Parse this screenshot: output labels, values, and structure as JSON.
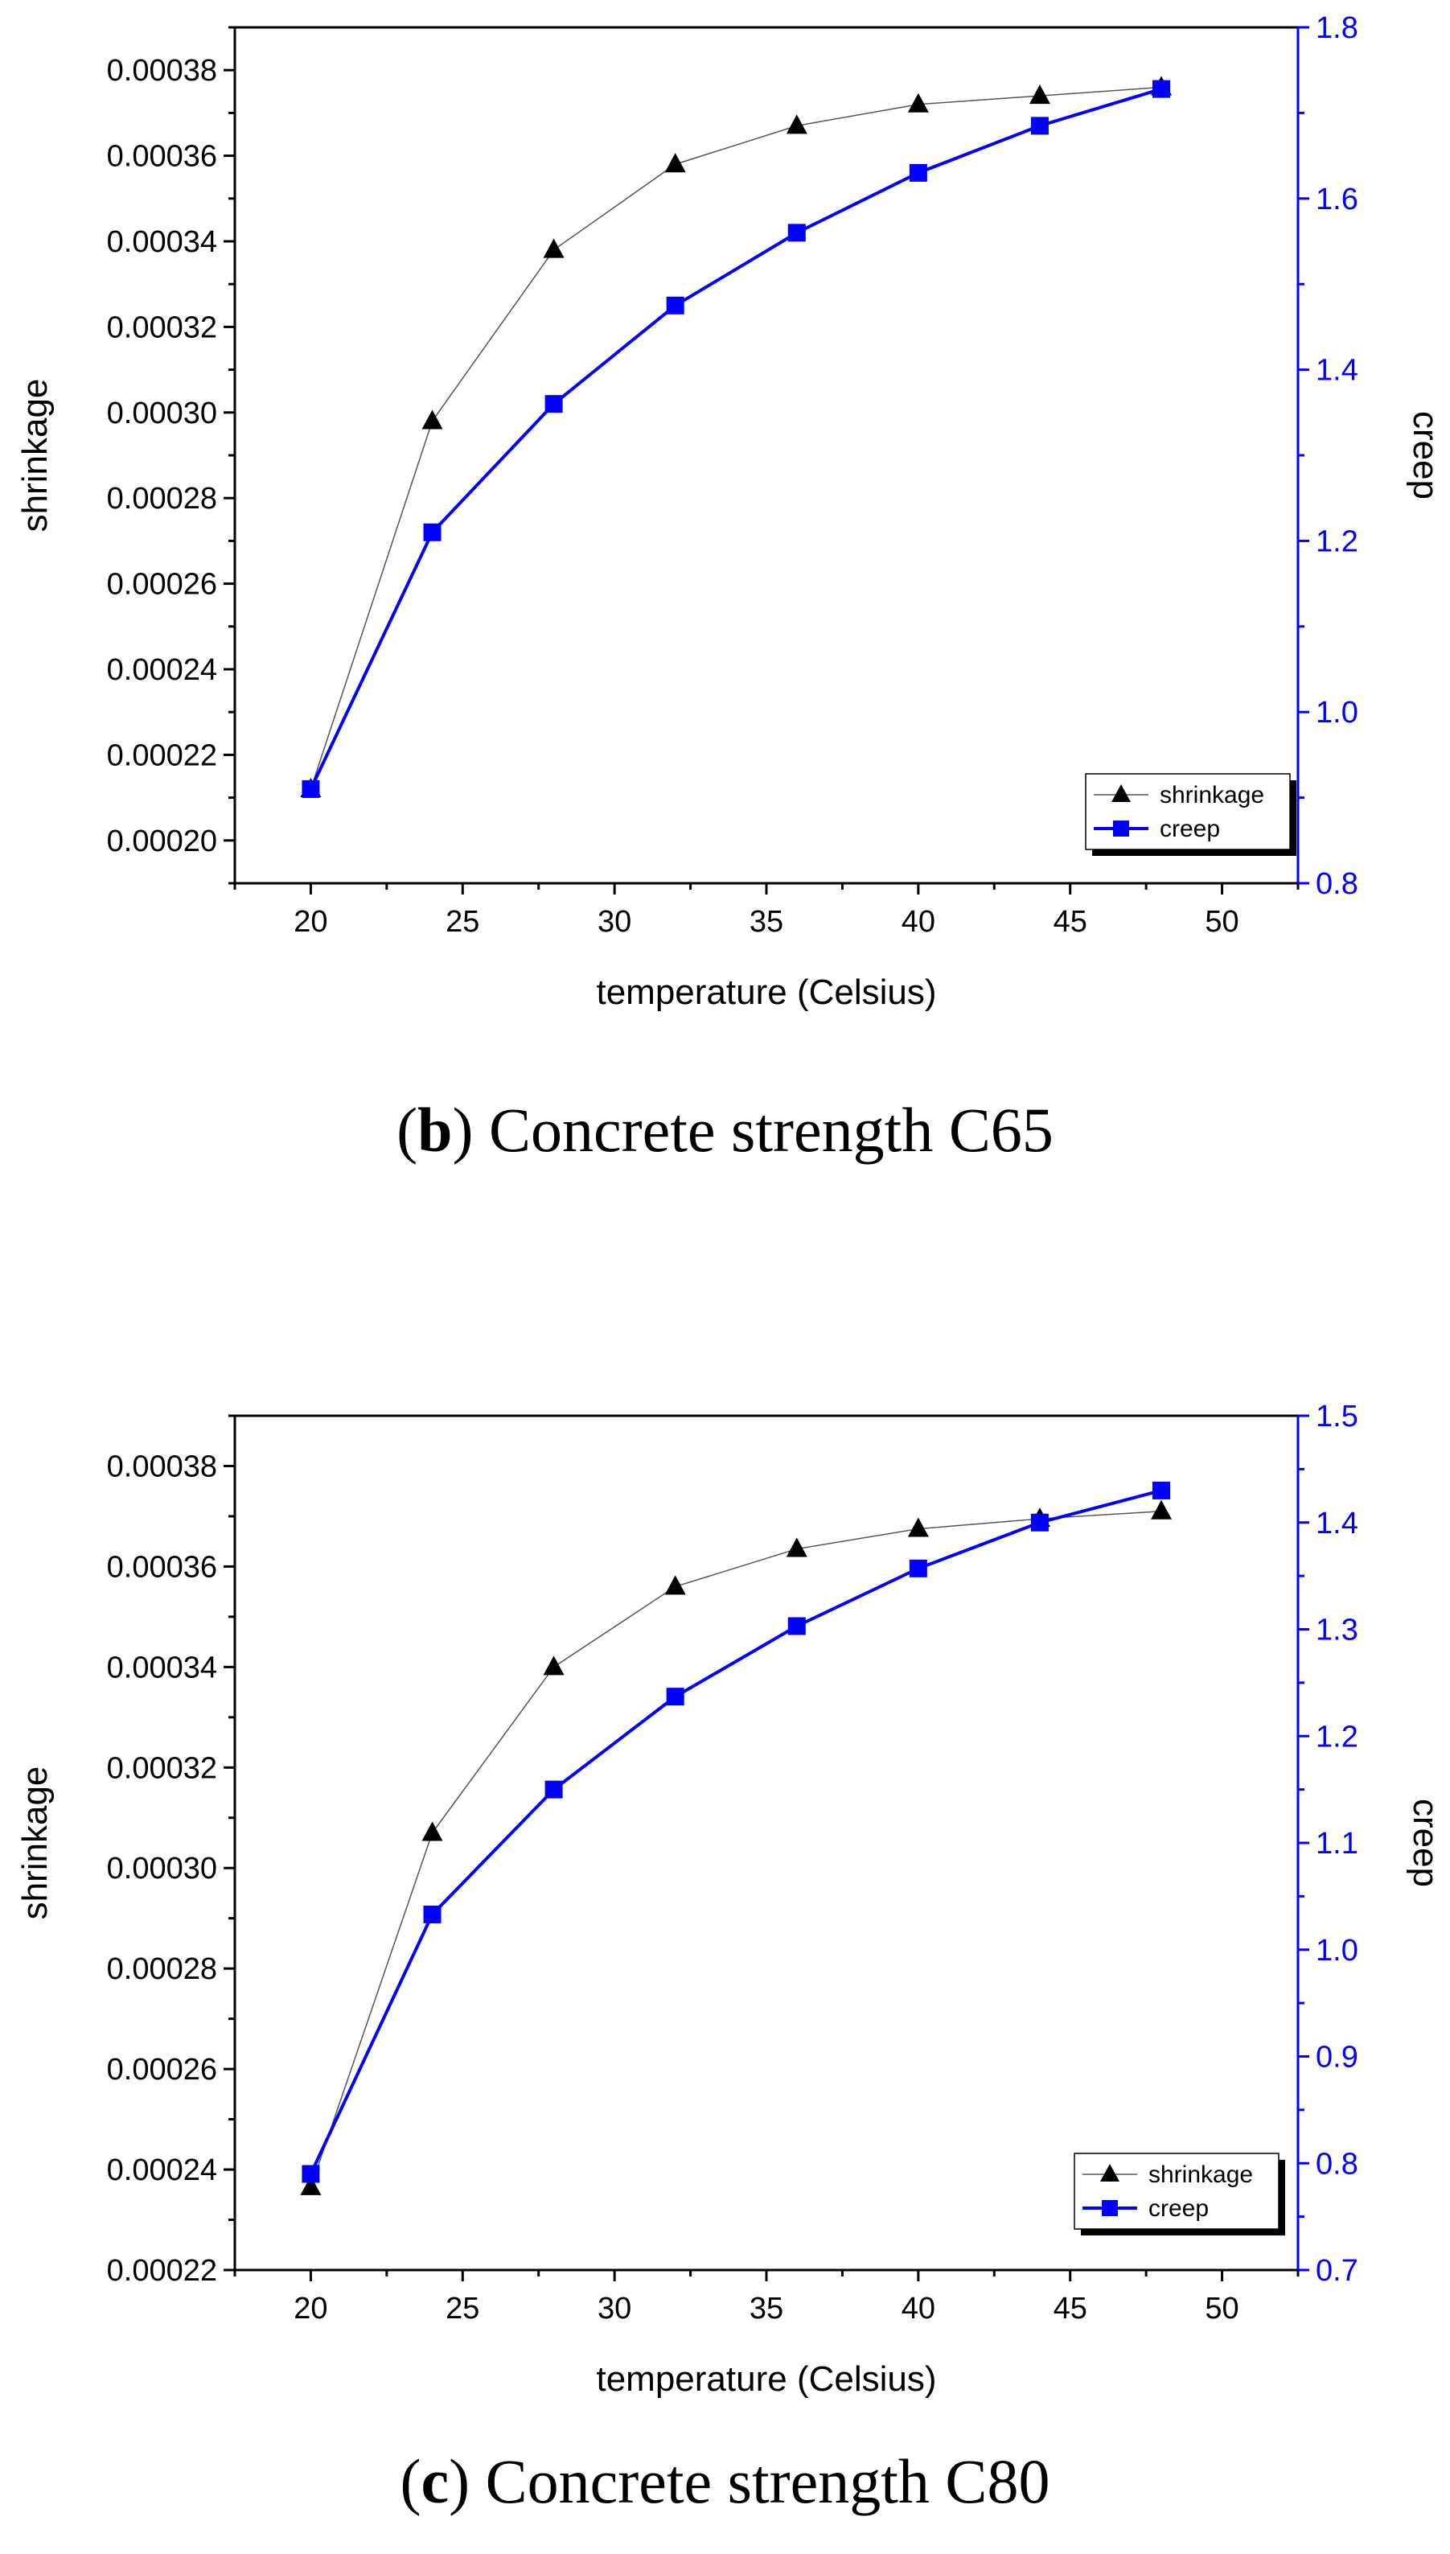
{
  "colors": {
    "shrinkage": "#000000",
    "creep": "#0000ff"
  },
  "chart_data": [
    {
      "type": "line",
      "caption_letter": "b",
      "caption_text": "Concrete strength C65",
      "xlabel": "temperature (Celsius)",
      "ylabel": "shrinkage",
      "y2label": "creep",
      "xlim": [
        17.5,
        52.5
      ],
      "ylim": [
        0.00019,
        0.00039
      ],
      "y2lim": [
        0.8,
        1.8
      ],
      "xticks": [
        20,
        25,
        30,
        35,
        40,
        45,
        50
      ],
      "yticks": [
        0.0002,
        0.00022,
        0.00024,
        0.00026,
        0.00028,
        0.0003,
        0.00032,
        0.00034,
        0.00036,
        0.00038
      ],
      "ytick_labels": [
        "0.00020",
        "0.00022",
        "0.00024",
        "0.00026",
        "0.00028",
        "0.00030",
        "0.00032",
        "0.00034",
        "0.00036",
        "0.00038"
      ],
      "y2ticks": [
        0.8,
        1.0,
        1.2,
        1.4,
        1.6,
        1.8
      ],
      "y2tick_labels": [
        "0.8",
        "1.0",
        "1.2",
        "1.4",
        "1.6",
        "1.8"
      ],
      "x": [
        20,
        24,
        28,
        32,
        36,
        40,
        44,
        48
      ],
      "series": [
        {
          "name": "shrinkage",
          "axis": "left",
          "marker": "triangle",
          "values": [
            0.000212,
            0.000298,
            0.000338,
            0.000358,
            0.000367,
            0.000372,
            0.000374,
            0.000376
          ]
        },
        {
          "name": "creep",
          "axis": "right",
          "marker": "square",
          "values": [
            0.91,
            1.21,
            1.36,
            1.475,
            1.56,
            1.63,
            1.685,
            1.728
          ]
        }
      ],
      "legend": [
        "shrinkage",
        "creep"
      ],
      "legend_position": "bottom-right"
    },
    {
      "type": "line",
      "caption_letter": "c",
      "caption_text": "Concrete strength C80",
      "xlabel": "temperature (Celsius)",
      "ylabel": "shrinkage",
      "y2label": "creep",
      "xlim": [
        17.5,
        52.5
      ],
      "ylim": [
        0.00022,
        0.00039
      ],
      "y2lim": [
        0.7,
        1.5
      ],
      "xticks": [
        20,
        25,
        30,
        35,
        40,
        45,
        50
      ],
      "yticks": [
        0.00022,
        0.00024,
        0.00026,
        0.00028,
        0.0003,
        0.00032,
        0.00034,
        0.00036,
        0.00038
      ],
      "ytick_labels": [
        "0.00022",
        "0.00024",
        "0.00026",
        "0.00028",
        "0.00030",
        "0.00032",
        "0.00034",
        "0.00036",
        "0.00038"
      ],
      "y2ticks": [
        0.7,
        0.8,
        0.9,
        1.0,
        1.1,
        1.2,
        1.3,
        1.4,
        1.5
      ],
      "y2tick_labels": [
        "0.7",
        "0.8",
        "0.9",
        "1.0",
        "1.1",
        "1.2",
        "1.3",
        "1.4",
        "1.5"
      ],
      "x": [
        20,
        24,
        28,
        32,
        36,
        40,
        44,
        48
      ],
      "series": [
        {
          "name": "shrinkage",
          "axis": "left",
          "marker": "triangle",
          "values": [
            0.0002365,
            0.000307,
            0.00034,
            0.000356,
            0.0003635,
            0.0003675,
            0.0003695,
            0.000371
          ]
        },
        {
          "name": "creep",
          "axis": "right",
          "marker": "square",
          "values": [
            0.79,
            1.033,
            1.15,
            1.237,
            1.303,
            1.357,
            1.4,
            1.43
          ]
        }
      ],
      "legend": [
        "shrinkage",
        "creep"
      ],
      "legend_position": "bottom-right"
    }
  ]
}
